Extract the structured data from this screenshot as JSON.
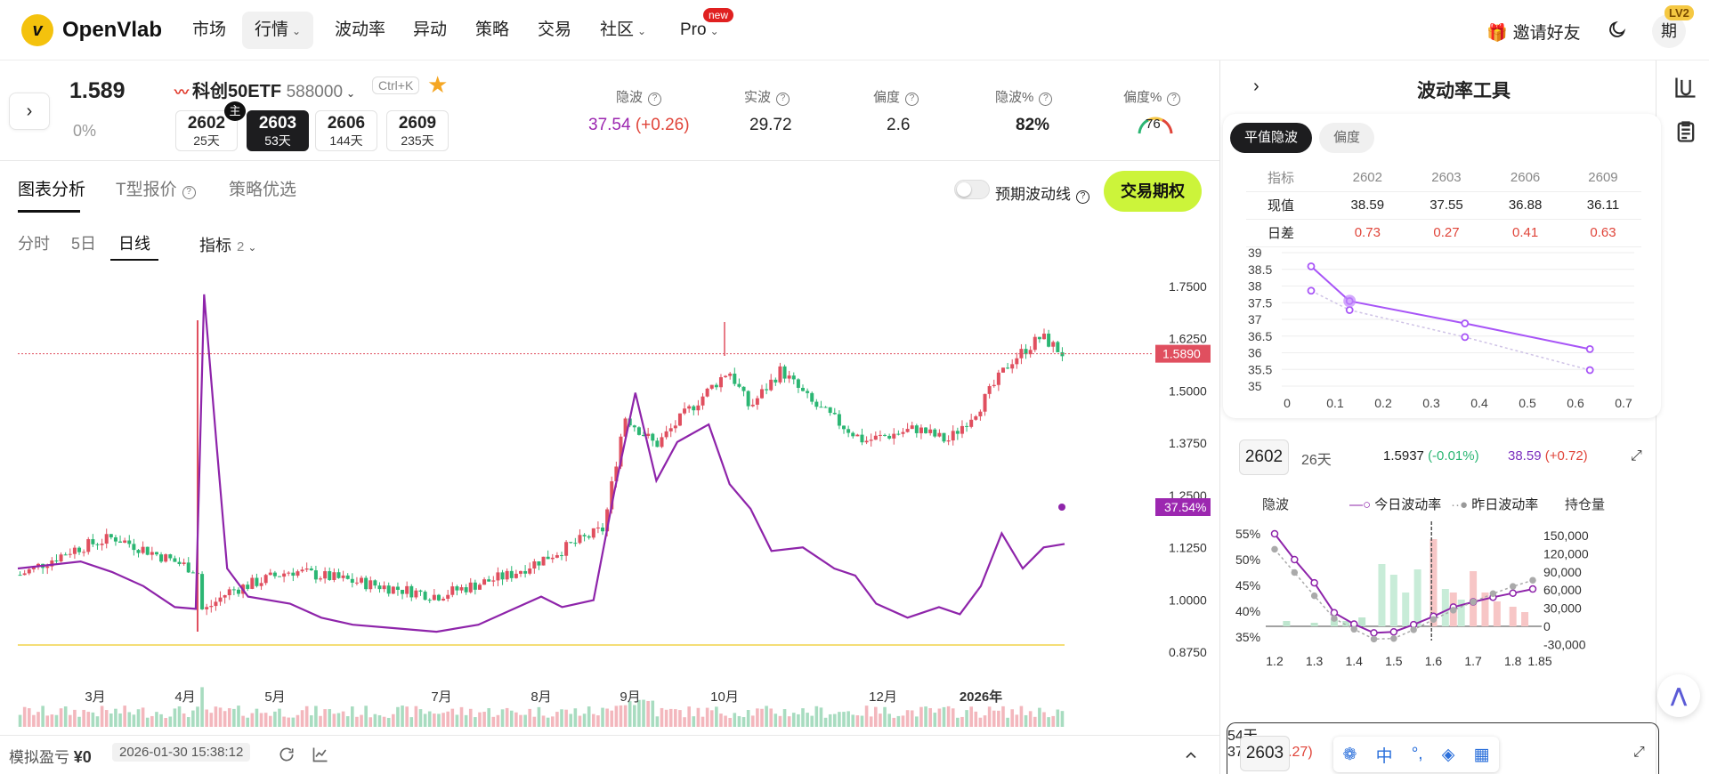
{
  "header": {
    "logo_text": "OpenVlab",
    "logo_glyph": "v",
    "nav": [
      {
        "label": "市场"
      },
      {
        "label": "行情",
        "dropdown": true,
        "active": true
      },
      {
        "label": "波动率"
      },
      {
        "label": "异动"
      },
      {
        "label": "策略"
      },
      {
        "label": "交易"
      },
      {
        "label": "社区",
        "dropdown": true
      },
      {
        "label": "Pro",
        "dropdown": true
      }
    ],
    "new_badge": "new",
    "invite_label": "邀请好友",
    "avatar_text": "期",
    "level_badge": "LV2"
  },
  "quote": {
    "price": "1.589",
    "change_pct": "0%",
    "name": "科创50ETF",
    "code": "588000",
    "shortcut": "Ctrl+K",
    "main_tag": "主",
    "expiries": [
      {
        "code": "2602",
        "days": "25天"
      },
      {
        "code": "2603",
        "days": "53天",
        "selected": true
      },
      {
        "code": "2606",
        "days": "144天"
      },
      {
        "code": "2609",
        "days": "235天"
      }
    ],
    "metrics": [
      {
        "label": "隐波",
        "value": "37.54",
        "delta": "(+0.26)"
      },
      {
        "label": "实波",
        "value": "29.72"
      },
      {
        "label": "偏度",
        "value": "2.6"
      },
      {
        "label": "隐波%",
        "value": "82%"
      },
      {
        "label": "偏度%",
        "value": "76"
      }
    ]
  },
  "tabs": {
    "main": [
      "图表分析",
      "T型报价",
      "策略优选"
    ],
    "forecast_toggle_label": "预期波动线",
    "trade_button": "交易期权",
    "periods": [
      "分时",
      "5日",
      "日线"
    ],
    "active_period": "日线",
    "indicator_label": "指标",
    "indicator_count": "2"
  },
  "chart_data": [
    {
      "type": "line",
      "title": "",
      "y_ticks": [
        "1.7500",
        "1.6250",
        "1.5000",
        "1.3750",
        "1.2500",
        "1.1250",
        "1.0000",
        "0.8750"
      ],
      "ylim": [
        0.875,
        1.75
      ],
      "x_ticks": [
        "3月",
        "4月",
        "5月",
        "7月",
        "8月",
        "9月",
        "10月",
        "12月",
        "2026年"
      ],
      "price_tag": "1.5890",
      "iv_tag": "37.54%",
      "series": [
        {
          "name": "",
          "role": "price-candles"
        },
        {
          "name": "",
          "role": "implied-vol"
        }
      ]
    },
    {
      "type": "line",
      "tool": "平值隐波",
      "x_ticks": [
        "0",
        "0.1",
        "0.2",
        "0.3",
        "0.4",
        "0.5",
        "0.6",
        "0.7"
      ],
      "y_ticks": [
        "39",
        "38.5",
        "38",
        "37.5",
        "37",
        "36.5",
        "36",
        "35.5",
        "35"
      ],
      "xlim": [
        0,
        0.7
      ],
      "ylim": [
        35,
        39
      ],
      "series": [
        {
          "name": "",
          "x": [
            0.05,
            0.13,
            0.37,
            0.63
          ],
          "y": [
            38.59,
            37.55,
            36.88,
            36.11
          ]
        },
        {
          "name": "",
          "x": [
            0.05,
            0.13,
            0.37,
            0.63
          ],
          "y": [
            37.86,
            37.28,
            36.47,
            35.48
          ]
        }
      ]
    },
    {
      "type": "line",
      "expiry": "2602",
      "x_ticks": [
        "1.2",
        "1.3",
        "1.4",
        "1.5",
        "1.6",
        "1.7",
        "1.8",
        "1.85"
      ],
      "y_left_ticks": [
        "55%",
        "50%",
        "45%",
        "40%",
        "35%"
      ],
      "y_right_ticks": [
        "150,000",
        "120,000",
        "90,000",
        "60,000",
        "30,000",
        "0",
        "-30,000"
      ],
      "xlim": [
        1.2,
        1.85
      ],
      "series": [
        {
          "name": "今日波动率",
          "x": [
            1.2,
            1.25,
            1.3,
            1.35,
            1.4,
            1.45,
            1.5,
            1.55,
            1.6,
            1.65,
            1.7,
            1.75,
            1.8,
            1.85
          ],
          "y": [
            55,
            50,
            45.5,
            39.7,
            37.5,
            35.8,
            36,
            37.4,
            39,
            40.8,
            41.8,
            42.7,
            43.5,
            44.3
          ]
        },
        {
          "name": "昨日波动率",
          "x": [
            1.2,
            1.25,
            1.3,
            1.35,
            1.4,
            1.45,
            1.5,
            1.55,
            1.6,
            1.65,
            1.7,
            1.75,
            1.8,
            1.85
          ],
          "y": [
            52,
            47.5,
            43,
            38.6,
            36.5,
            34.6,
            34.7,
            36.4,
            38.4,
            40.2,
            41.8,
            43.4,
            44.8,
            46
          ]
        }
      ]
    }
  ],
  "bottom": {
    "pnl_label": "模拟盈亏",
    "pnl_value": "¥0",
    "timestamp": "2026-01-30 15:38:12"
  },
  "right_panel": {
    "title": "波动率工具",
    "pills": [
      "平值隐波",
      "偏度"
    ],
    "table": {
      "header": [
        "指标",
        "2602",
        "2603",
        "2606",
        "2609"
      ],
      "rows": [
        [
          "现值",
          "38.59",
          "37.55",
          "36.88",
          "36.11"
        ],
        [
          "日差",
          "0.73",
          "0.27",
          "0.41",
          "0.63"
        ]
      ]
    },
    "expiry_card_1": {
      "code": "2602",
      "days": "26天",
      "underlying": "1.5937",
      "underlying_chg": "(-0.01%)",
      "iv": "38.59",
      "iv_chg": "(+0.72)"
    },
    "smile_legend": {
      "left_axis": "隐波",
      "today": "今日波动率",
      "yesterday": "昨日波动率",
      "right_axis": "持仓量"
    },
    "expiry_card_2": {
      "code": "2603",
      "days": "54天",
      "iv": "37.55",
      "iv_chg": "(+0.27)"
    }
  },
  "ime": {
    "lang": "中",
    "punct": "°,"
  },
  "colors": {
    "accent_green": "#ccf43a",
    "iv_purple": "#8e24aa",
    "up_red": "#e04f5f",
    "down_green": "#2bb673"
  }
}
